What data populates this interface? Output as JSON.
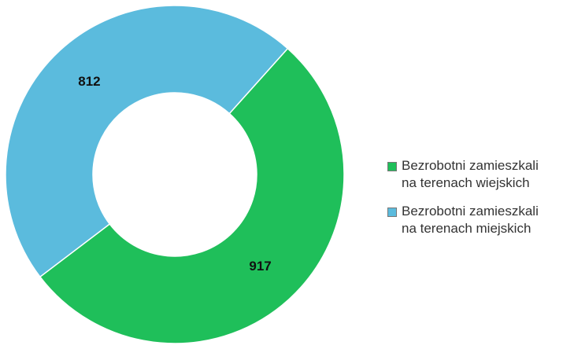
{
  "chart_data": {
    "type": "donut",
    "categories": [
      "Bezrobotni zamieszkali na terenach wiejskich",
      "Bezrobotni zamieszkali na terenach miejskich"
    ],
    "values": [
      917,
      812
    ],
    "colors": [
      "#1fbf5a",
      "#5bbbdd"
    ],
    "legend": "right"
  }
}
